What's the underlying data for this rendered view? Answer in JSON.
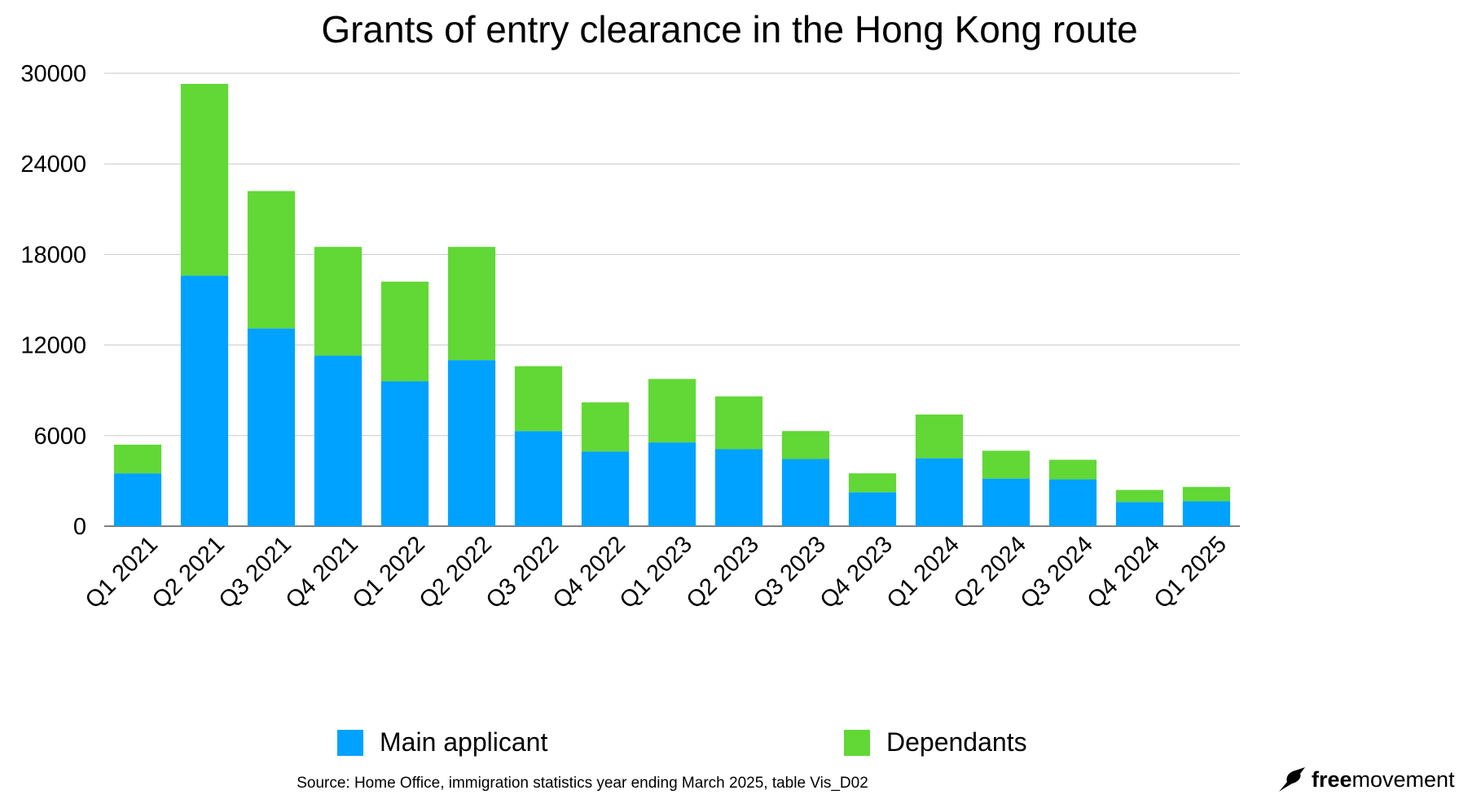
{
  "chart_data": {
    "type": "bar",
    "stacked": true,
    "title": "Grants of entry clearance in the Hong Kong route",
    "xlabel": "",
    "ylabel": "",
    "ylim": [
      0,
      30000
    ],
    "yticks": [
      "0",
      "6000",
      "12000",
      "18000",
      "24000",
      "30000"
    ],
    "grid": true,
    "legend_position": "bottom",
    "categories": [
      "Q1 2021",
      "Q2 2021",
      "Q3 2021",
      "Q4 2021",
      "Q1 2022",
      "Q2 2022",
      "Q3 2022",
      "Q4 2022",
      "Q1 2023",
      "Q2 2023",
      "Q3 2023",
      "Q4 2023",
      "Q1 2024",
      "Q2 2024",
      "Q3 2024",
      "Q4 2024",
      "Q1 2025"
    ],
    "series": [
      {
        "name": "Main applicant",
        "color": "#00a2ff",
        "values": [
          3500,
          16600,
          13100,
          11300,
          9600,
          11000,
          6300,
          4950,
          5550,
          5100,
          4450,
          2250,
          4500,
          3150,
          3100,
          1600,
          1650
        ]
      },
      {
        "name": "Dependants",
        "color": "#61d836",
        "values": [
          1900,
          12700,
          9100,
          7200,
          6600,
          7500,
          4300,
          3250,
          4200,
          3500,
          1850,
          1250,
          2900,
          1850,
          1300,
          800,
          950
        ]
      }
    ]
  },
  "legend": {
    "main_label": "Main applicant",
    "dependants_label": "Dependants"
  },
  "footer": {
    "source": "Source: Home Office, immigration statistics year ending March 2025, table Vis_D02",
    "logo_free": "free",
    "logo_movement": "movement"
  },
  "colors": {
    "main": "#00a2ff",
    "dependants": "#61d836",
    "grid": "#c8c8c8"
  }
}
